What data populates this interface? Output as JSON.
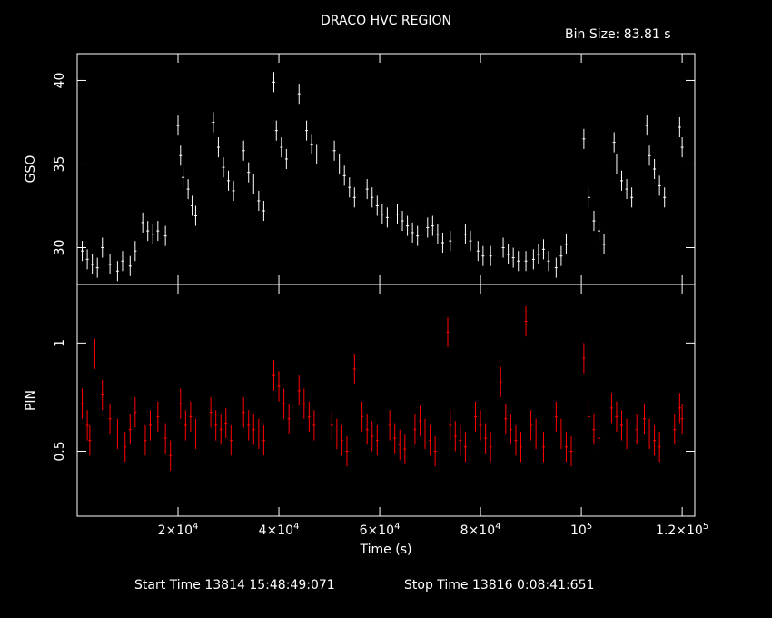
{
  "title": "DRACO HVC REGION",
  "bin_size_label": "Bin Size:  83.81  s",
  "start_time_label": "Start Time 13814 15:48:49:071",
  "stop_time_label": "Stop Time 13816  0:08:41:651",
  "colors": {
    "background": "#000000",
    "axes": "#ffffff",
    "gso_series": "#ffffff",
    "pin_series": "#ff0000"
  },
  "chart_data": [
    {
      "type": "scatter",
      "name": "gso-panel",
      "xlabel": "Time (s)",
      "ylabel": "GSO",
      "xlim": [
        0,
        122500
      ],
      "ylim": [
        27.8,
        41.6
      ],
      "yticks": [
        30,
        35,
        40
      ],
      "series": [
        {
          "color": "#ffffff",
          "points": [
            [
              1000,
              29.8
            ],
            [
              2000,
              29.3
            ],
            [
              3000,
              29.0
            ],
            [
              4000,
              28.8
            ],
            [
              5000,
              30.0
            ],
            [
              6500,
              29.0
            ],
            [
              8000,
              28.6
            ],
            [
              9000,
              29.2
            ],
            [
              10500,
              28.9
            ],
            [
              11500,
              29.8
            ],
            [
              13000,
              31.5
            ],
            [
              14000,
              31.0
            ],
            [
              15000,
              30.8
            ],
            [
              16000,
              31.0
            ],
            [
              17500,
              30.7
            ],
            [
              20000,
              37.3
            ],
            [
              20500,
              35.5
            ],
            [
              21000,
              34.2
            ],
            [
              22000,
              33.5
            ],
            [
              22800,
              32.5
            ],
            [
              23500,
              31.9
            ],
            [
              27000,
              37.5
            ],
            [
              28000,
              36.0
            ],
            [
              29000,
              34.8
            ],
            [
              30000,
              34.0
            ],
            [
              31000,
              33.4
            ],
            [
              33000,
              35.8
            ],
            [
              34000,
              34.5
            ],
            [
              35000,
              33.8
            ],
            [
              36000,
              32.8
            ],
            [
              37000,
              32.2
            ],
            [
              39000,
              39.9
            ],
            [
              39500,
              37.0
            ],
            [
              40500,
              36.0
            ],
            [
              41500,
              35.3
            ],
            [
              44000,
              39.2
            ],
            [
              45500,
              37.0
            ],
            [
              46500,
              36.2
            ],
            [
              47500,
              35.6
            ],
            [
              51000,
              35.8
            ],
            [
              52000,
              35.0
            ],
            [
              53000,
              34.3
            ],
            [
              54000,
              33.6
            ],
            [
              55000,
              33.0
            ],
            [
              57500,
              33.5
            ],
            [
              58500,
              33.0
            ],
            [
              59500,
              32.5
            ],
            [
              60500,
              32.0
            ],
            [
              61500,
              31.8
            ],
            [
              63500,
              32.0
            ],
            [
              64500,
              31.6
            ],
            [
              65500,
              31.3
            ],
            [
              66500,
              30.9
            ],
            [
              67500,
              30.7
            ],
            [
              69500,
              31.2
            ],
            [
              70500,
              31.3
            ],
            [
              71500,
              30.8
            ],
            [
              72500,
              30.3
            ],
            [
              74000,
              30.4
            ],
            [
              77000,
              30.8
            ],
            [
              78000,
              30.4
            ],
            [
              79500,
              29.8
            ],
            [
              80500,
              29.5
            ],
            [
              82000,
              29.5
            ],
            [
              84500,
              30.0
            ],
            [
              85500,
              29.6
            ],
            [
              86500,
              29.4
            ],
            [
              87500,
              29.2
            ],
            [
              89000,
              29.2
            ],
            [
              90500,
              29.3
            ],
            [
              91500,
              29.6
            ],
            [
              92500,
              29.9
            ],
            [
              93500,
              29.2
            ],
            [
              95000,
              28.8
            ],
            [
              96000,
              29.5
            ],
            [
              97000,
              30.2
            ],
            [
              100500,
              36.5
            ],
            [
              101500,
              33.0
            ],
            [
              102500,
              31.6
            ],
            [
              103500,
              31.0
            ],
            [
              104500,
              30.2
            ],
            [
              106500,
              36.3
            ],
            [
              107000,
              35.0
            ],
            [
              108000,
              34.0
            ],
            [
              109000,
              33.5
            ],
            [
              110000,
              33.0
            ],
            [
              113000,
              37.3
            ],
            [
              113500,
              35.5
            ],
            [
              114500,
              34.7
            ],
            [
              115500,
              33.7
            ],
            [
              116500,
              33.0
            ],
            [
              119500,
              37.2
            ],
            [
              120000,
              36.0
            ]
          ]
        }
      ]
    },
    {
      "type": "scatter",
      "name": "pin-panel",
      "xlabel": "Time (s)",
      "ylabel": "PIN",
      "xlim": [
        0,
        122500
      ],
      "ylim": [
        0.2,
        1.27
      ],
      "yticks": [
        0.5,
        1
      ],
      "xticks": [
        {
          "value": 20000,
          "label_mantissa": "2×10",
          "label_exp": "4"
        },
        {
          "value": 40000,
          "label_mantissa": "4×10",
          "label_exp": "4"
        },
        {
          "value": 60000,
          "label_mantissa": "6×10",
          "label_exp": "4"
        },
        {
          "value": 80000,
          "label_mantissa": "8×10",
          "label_exp": "4"
        },
        {
          "value": 100000,
          "label_mantissa": "10",
          "label_exp": "5"
        },
        {
          "value": 120000,
          "label_mantissa": "1.2×10",
          "label_exp": "5"
        }
      ],
      "series": [
        {
          "color": "#ff0000",
          "points": [
            [
              1000,
              0.72
            ],
            [
              2000,
              0.62
            ],
            [
              2500,
              0.55
            ],
            [
              3500,
              0.95
            ],
            [
              5000,
              0.76
            ],
            [
              6500,
              0.65
            ],
            [
              8000,
              0.58
            ],
            [
              9500,
              0.52
            ],
            [
              10500,
              0.6
            ],
            [
              11500,
              0.68
            ],
            [
              13500,
              0.55
            ],
            [
              14500,
              0.62
            ],
            [
              16000,
              0.66
            ],
            [
              17500,
              0.56
            ],
            [
              18500,
              0.48
            ],
            [
              20500,
              0.72
            ],
            [
              21500,
              0.62
            ],
            [
              22500,
              0.66
            ],
            [
              23500,
              0.58
            ],
            [
              26500,
              0.68
            ],
            [
              27500,
              0.62
            ],
            [
              28500,
              0.6
            ],
            [
              29500,
              0.63
            ],
            [
              30500,
              0.55
            ],
            [
              33000,
              0.68
            ],
            [
              34000,
              0.62
            ],
            [
              35000,
              0.6
            ],
            [
              36000,
              0.58
            ],
            [
              37000,
              0.55
            ],
            [
              39000,
              0.85
            ],
            [
              40000,
              0.8
            ],
            [
              41000,
              0.72
            ],
            [
              42000,
              0.65
            ],
            [
              44000,
              0.78
            ],
            [
              45000,
              0.72
            ],
            [
              46000,
              0.66
            ],
            [
              47000,
              0.62
            ],
            [
              50500,
              0.62
            ],
            [
              51500,
              0.58
            ],
            [
              52500,
              0.55
            ],
            [
              53500,
              0.5
            ],
            [
              55000,
              0.88
            ],
            [
              56500,
              0.66
            ],
            [
              57500,
              0.6
            ],
            [
              58500,
              0.57
            ],
            [
              59500,
              0.55
            ],
            [
              62000,
              0.62
            ],
            [
              63000,
              0.56
            ],
            [
              64000,
              0.53
            ],
            [
              65000,
              0.51
            ],
            [
              67000,
              0.6
            ],
            [
              68000,
              0.64
            ],
            [
              69000,
              0.58
            ],
            [
              70000,
              0.55
            ],
            [
              71000,
              0.5
            ],
            [
              73500,
              1.05
            ],
            [
              74000,
              0.62
            ],
            [
              75000,
              0.57
            ],
            [
              76000,
              0.55
            ],
            [
              77000,
              0.52
            ],
            [
              79000,
              0.66
            ],
            [
              80000,
              0.62
            ],
            [
              81000,
              0.56
            ],
            [
              82000,
              0.52
            ],
            [
              84000,
              0.82
            ],
            [
              85000,
              0.65
            ],
            [
              86000,
              0.6
            ],
            [
              87000,
              0.55
            ],
            [
              88000,
              0.52
            ],
            [
              89000,
              1.1
            ],
            [
              90000,
              0.62
            ],
            [
              91000,
              0.58
            ],
            [
              92500,
              0.52
            ],
            [
              95000,
              0.66
            ],
            [
              96000,
              0.58
            ],
            [
              97000,
              0.52
            ],
            [
              98000,
              0.5
            ],
            [
              100500,
              0.93
            ],
            [
              101500,
              0.66
            ],
            [
              102500,
              0.6
            ],
            [
              103500,
              0.56
            ],
            [
              106000,
              0.7
            ],
            [
              107000,
              0.66
            ],
            [
              108000,
              0.62
            ],
            [
              109000,
              0.58
            ],
            [
              111000,
              0.6
            ],
            [
              112500,
              0.65
            ],
            [
              113500,
              0.58
            ],
            [
              114500,
              0.55
            ],
            [
              115500,
              0.52
            ],
            [
              118500,
              0.6
            ],
            [
              119500,
              0.7
            ],
            [
              120000,
              0.65
            ]
          ]
        }
      ]
    }
  ]
}
